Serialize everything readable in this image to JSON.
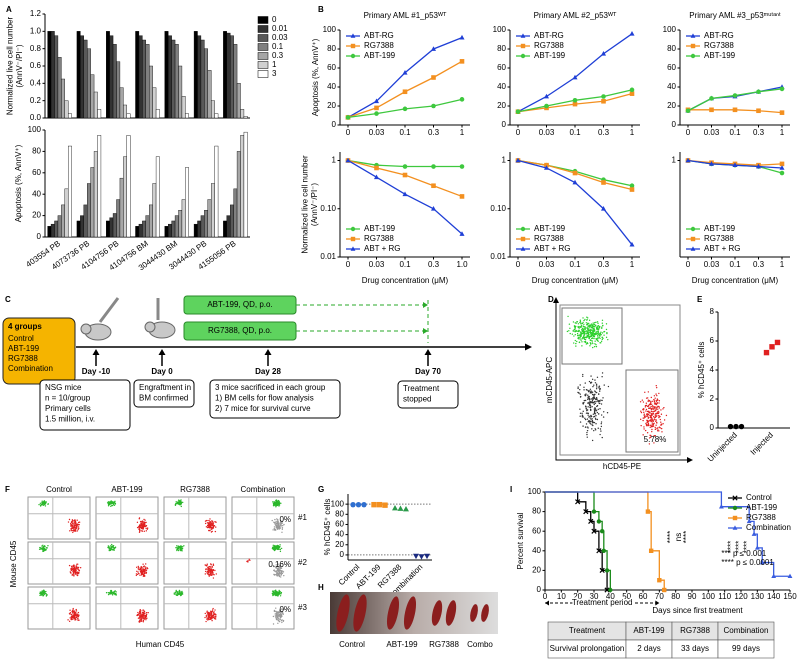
{
  "panel_labels": [
    "A",
    "B",
    "C",
    "D",
    "E",
    "F",
    "G",
    "H",
    "I"
  ],
  "chart_data": [
    {
      "type": "bar",
      "ylabel": [
        "Normalized live cell number",
        "(AnnV⁻/PI⁻)"
      ],
      "ylim": [
        0,
        1.2
      ],
      "yticks": [
        {
          "value": 0,
          "label": "0.0"
        },
        0.2,
        0.4,
        0.6,
        0.8,
        {
          "value": 1,
          "label": "1.0"
        },
        1.2
      ],
      "legend": "right",
      "series": [
        {
          "name": "0",
          "color": "#000000",
          "values": [
            1,
            1,
            1,
            1,
            1,
            1,
            1
          ]
        },
        {
          "name": "0.01",
          "color": "#333333",
          "values": [
            1,
            0.95,
            0.95,
            0.95,
            0.95,
            0.95,
            0.98
          ]
        },
        {
          "name": "0.03",
          "color": "#595959",
          "values": [
            0.95,
            0.9,
            0.85,
            0.9,
            0.9,
            0.9,
            0.95
          ]
        },
        {
          "name": "0.1",
          "color": "#808080",
          "values": [
            0.7,
            0.8,
            0.65,
            0.85,
            0.85,
            0.8,
            0.85
          ]
        },
        {
          "name": "0.3",
          "color": "#a6a6a6",
          "values": [
            0.45,
            0.5,
            0.35,
            0.6,
            0.6,
            0.55,
            0.4
          ]
        },
        {
          "name": "1",
          "color": "#d0d0d0",
          "values": [
            0.2,
            0.3,
            0.15,
            0.35,
            0.25,
            0.2,
            0.1
          ]
        },
        {
          "name": "3",
          "color": "#ffffff",
          "values": [
            0.05,
            0.1,
            0.05,
            0.1,
            0.05,
            0.05,
            0.02
          ]
        }
      ]
    },
    {
      "type": "bar",
      "ylabel": "Apoptosis (%, AnnV⁺)",
      "ylim": [
        0,
        100
      ],
      "yticks": [
        0,
        20,
        40,
        60,
        80,
        100
      ],
      "categories": [
        "403554 PB",
        "4073736 PB",
        "4104756 PB",
        "4104756 BM",
        "3044430 BM",
        "3044430 PB",
        "4155056 PB"
      ],
      "series": [
        {
          "color": "#000000",
          "values": [
            10,
            15,
            15,
            10,
            10,
            12,
            15
          ]
        },
        {
          "color": "#333333",
          "values": [
            12,
            20,
            18,
            12,
            12,
            15,
            20
          ]
        },
        {
          "color": "#595959",
          "values": [
            15,
            30,
            22,
            15,
            15,
            20,
            30
          ]
        },
        {
          "color": "#808080",
          "values": [
            20,
            50,
            35,
            20,
            20,
            25,
            45
          ]
        },
        {
          "color": "#a6a6a6",
          "values": [
            30,
            65,
            55,
            30,
            25,
            35,
            80
          ]
        },
        {
          "color": "#d0d0d0",
          "values": [
            45,
            80,
            75,
            50,
            35,
            50,
            95
          ]
        },
        {
          "color": "#ffffff",
          "values": [
            85,
            95,
            95,
            75,
            65,
            85,
            98
          ]
        }
      ]
    },
    {
      "type": "line",
      "title": "Primary AML #1_p53ᵂᵀ",
      "ylabel": "Apoptosis (%, AnnV⁺)",
      "ylim": [
        0,
        100
      ],
      "yticks": [
        0,
        20,
        40,
        60,
        80,
        100
      ],
      "categories": [
        "0",
        "0.03",
        "0.1",
        "0.3",
        "1"
      ],
      "legend": "upper left",
      "series": [
        {
          "name": "ABT-RG",
          "color": "#1f3fd6",
          "marker": "triangle",
          "values": [
            8,
            25,
            55,
            80,
            92
          ]
        },
        {
          "name": "RG7388",
          "color": "#f39020",
          "marker": "square",
          "values": [
            8,
            18,
            35,
            50,
            67
          ]
        },
        {
          "name": "ABT-199",
          "color": "#3ec83e",
          "marker": "circle",
          "values": [
            8,
            12,
            17,
            20,
            27
          ]
        }
      ]
    },
    {
      "type": "line",
      "title": "Primary AML #2_p53ᵂᵀ",
      "ylim": [
        0,
        100
      ],
      "yticks": [
        0,
        20,
        40,
        60,
        80,
        100
      ],
      "categories": [
        "0",
        "0.03",
        "0.1",
        "0.3",
        "1"
      ],
      "legend": "upper left",
      "series": [
        {
          "name": "ABT-RG",
          "color": "#1f3fd6",
          "marker": "triangle",
          "values": [
            14,
            30,
            50,
            75,
            96
          ]
        },
        {
          "name": "RG7388",
          "color": "#f39020",
          "marker": "square",
          "values": [
            14,
            18,
            22,
            25,
            33
          ]
        },
        {
          "name": "ABT-199",
          "color": "#3ec83e",
          "marker": "circle",
          "values": [
            14,
            20,
            26,
            30,
            37
          ]
        }
      ]
    },
    {
      "type": "line",
      "title": "Primary AML #3_p53ᵐᵘᵗᵃⁿᵗ",
      "ylim": [
        0,
        100
      ],
      "yticks": [
        0,
        20,
        40,
        60,
        80,
        100
      ],
      "categories": [
        "0",
        "0.03",
        "0.1",
        "0.3",
        "1"
      ],
      "legend": "upper left",
      "series": [
        {
          "name": "ABT-RG",
          "color": "#1f3fd6",
          "marker": "triangle",
          "values": [
            15,
            28,
            30,
            35,
            40
          ]
        },
        {
          "name": "RG7388",
          "color": "#f39020",
          "marker": "square",
          "values": [
            16,
            16,
            16,
            15,
            13
          ]
        },
        {
          "name": "ABT-199",
          "color": "#3ec83e",
          "marker": "circle",
          "values": [
            15,
            28,
            31,
            35,
            38
          ]
        }
      ]
    },
    {
      "type": "line",
      "ylabel": [
        "Normalized live cell number",
        "(AnnV⁻/PI⁻)"
      ],
      "xlabel": "Drug concentration (μM)",
      "yscale": "log",
      "ylim": [
        0.01,
        1.5
      ],
      "yticks": [
        1,
        {
          "value": 0.1,
          "label": "0.10"
        },
        0.01
      ],
      "categories": [
        "0",
        "0.03",
        "0.1",
        "0.3",
        "1.0"
      ],
      "legend": "lower left",
      "series": [
        {
          "name": "ABT-199",
          "color": "#3ec83e",
          "marker": "circle",
          "values": [
            1,
            0.8,
            0.75,
            0.75,
            0.75
          ]
        },
        {
          "name": "RG7388",
          "color": "#f39020",
          "marker": "square",
          "values": [
            1,
            0.7,
            0.5,
            0.3,
            0.18
          ]
        },
        {
          "name": "ABT + RG",
          "color": "#1f3fd6",
          "marker": "triangle",
          "values": [
            1,
            0.45,
            0.2,
            0.1,
            0.03
          ]
        }
      ]
    },
    {
      "type": "line",
      "xlabel": "Drug concentration (μM)",
      "yscale": "log",
      "ylim": [
        0.01,
        1.5
      ],
      "yticks": [
        1,
        {
          "value": 0.1,
          "label": "0.10"
        },
        0.01
      ],
      "categories": [
        "0",
        "0.03",
        "0.1",
        "0.3",
        "1"
      ],
      "legend": "lower left",
      "series": [
        {
          "name": "ABT-199",
          "color": "#3ec83e",
          "marker": "circle",
          "values": [
            1,
            0.8,
            0.6,
            0.4,
            0.3
          ]
        },
        {
          "name": "RG7388",
          "color": "#f39020",
          "marker": "square",
          "values": [
            1,
            0.8,
            0.55,
            0.35,
            0.25
          ]
        },
        {
          "name": "ABT + RG",
          "color": "#1f3fd6",
          "marker": "triangle",
          "values": [
            1,
            0.7,
            0.35,
            0.1,
            0.018
          ]
        }
      ]
    },
    {
      "type": "line",
      "xlabel": "Drug concentration (μM)",
      "yscale": "log",
      "ylim": [
        0.01,
        1.5
      ],
      "yticks": [
        1
      ],
      "categories": [
        "0",
        "0.03",
        "0.1",
        "0.3",
        "1"
      ],
      "legend": "lower left",
      "series": [
        {
          "name": "ABT-199",
          "color": "#3ec83e",
          "marker": "circle",
          "values": [
            1,
            0.85,
            0.8,
            0.75,
            0.55
          ]
        },
        {
          "name": "RG7388",
          "color": "#f39020",
          "marker": "square",
          "values": [
            1,
            0.9,
            0.85,
            0.8,
            0.85
          ]
        },
        {
          "name": "ABT + RG",
          "color": "#1f3fd6",
          "marker": "triangle",
          "values": [
            1,
            0.85,
            0.8,
            0.75,
            0.7
          ]
        }
      ]
    },
    {
      "type": "dot",
      "ylabel": "% hCD45⁺ cells",
      "ylim": [
        0,
        8
      ],
      "yticks": [
        0,
        2,
        4,
        6,
        8
      ],
      "categories": [
        "Uninjected",
        "Injected"
      ],
      "colors": [
        "#000000",
        "#e02020"
      ],
      "markers": [
        "circle",
        "square"
      ],
      "values": [
        [
          0.1,
          0.1,
          0.1
        ],
        [
          5.2,
          5.6,
          5.9
        ]
      ]
    },
    {
      "type": "dot",
      "ylabel": "% hCD45⁺ cells",
      "ylim": [
        -10,
        120
      ],
      "yticks": [
        0,
        20,
        40,
        60,
        80,
        100
      ],
      "hlines": [
        0,
        100
      ],
      "categories": [
        "Control",
        "ABT-199",
        "RG7388",
        "Combination"
      ],
      "colors": [
        "#2f6fd0",
        "#f39020",
        "#2a9a4a",
        "#1a2a80"
      ],
      "markers": [
        "circle",
        "square",
        "triangle",
        "triangle-down"
      ],
      "values": [
        [
          99,
          99,
          99
        ],
        [
          99,
          99,
          98
        ],
        [
          92,
          91,
          90
        ],
        [
          -2,
          -3,
          -2
        ]
      ]
    },
    {
      "type": "step",
      "ylabel": "Percent survival",
      "xlabel": "Days since first treatment",
      "xlim": [
        0,
        150
      ],
      "xticks": [
        0,
        10,
        20,
        30,
        40,
        50,
        60,
        70,
        80,
        90,
        100,
        110,
        120,
        130,
        140,
        150
      ],
      "ylim": [
        0,
        100
      ],
      "yticks": [
        0,
        20,
        40,
        60,
        80,
        100
      ],
      "legend": "upper right",
      "annotation": "Treatment period",
      "stats": [
        "*** p ≤ 0.001",
        "**** p ≤ 0.0001"
      ],
      "significance_left": [
        "****",
        "ns",
        "****"
      ],
      "significance_right": [
        "****",
        "****",
        "****"
      ],
      "series": [
        {
          "name": "Control",
          "color": "#000000",
          "marker": "x",
          "x": [
            0,
            20,
            25,
            28,
            30,
            33,
            35,
            38
          ],
          "values": [
            100,
            90,
            80,
            70,
            60,
            40,
            20,
            0
          ]
        },
        {
          "name": "ABT-199",
          "color": "#1a8a1a",
          "marker": "circle",
          "x": [
            0,
            30,
            33,
            35,
            36,
            38,
            40
          ],
          "values": [
            100,
            80,
            70,
            60,
            40,
            20,
            0
          ]
        },
        {
          "name": "RG7388",
          "color": "#f39020",
          "marker": "square",
          "x": [
            0,
            63,
            65,
            70,
            73
          ],
          "values": [
            100,
            80,
            40,
            10,
            0
          ]
        },
        {
          "name": "Combination",
          "color": "#3a5de0",
          "marker": "triangle",
          "x": [
            0,
            108,
            125,
            128,
            130,
            133,
            140,
            150
          ],
          "values": [
            100,
            85,
            70,
            57,
            43,
            28,
            14,
            14
          ]
        }
      ]
    }
  ],
  "timeline": {
    "groups_title": "4 groups",
    "groups": [
      "Control",
      "ABT-199",
      "RG7388",
      "Combination"
    ],
    "days": [
      "Day -10",
      "Day 0",
      "Day 28",
      "Day 70"
    ],
    "treatments": [
      "ABT-199, QD, p.o.",
      "RG7388, QD, p.o."
    ],
    "notes": [
      [
        "NSG mice",
        "n = 10/group",
        "Primary cells",
        "1.5 million, i.v."
      ],
      [
        "Engraftment in",
        "BM confirmed"
      ],
      [
        "3 mice sacrificed in each group",
        "1) BM cells for flow analysis",
        "2) 7 mice for survival curve"
      ],
      [
        "Treatment",
        "stopped"
      ]
    ]
  },
  "flow_d": {
    "ylabel": "mCD45-APC",
    "xlabel": "hCD45-PE",
    "percent": "5.78%"
  },
  "flow_f": {
    "columns": [
      "Control",
      "ABT-199",
      "RG7388",
      "Combination"
    ],
    "rows": [
      "#1",
      "#2",
      "#3"
    ],
    "percents": [
      "0%",
      "0.16%",
      "0%"
    ],
    "ylabel": "Mouse CD45",
    "xlabel": "Human CD45"
  },
  "spleens": {
    "labels": [
      "Control",
      "ABT-199",
      "RG7388",
      "Combo"
    ]
  },
  "table": {
    "rows": [
      [
        "Treatment",
        "ABT-199",
        "RG7388",
        "Combination"
      ],
      [
        "Survival prolongation",
        "2 days",
        "33 days",
        "99 days"
      ]
    ]
  }
}
